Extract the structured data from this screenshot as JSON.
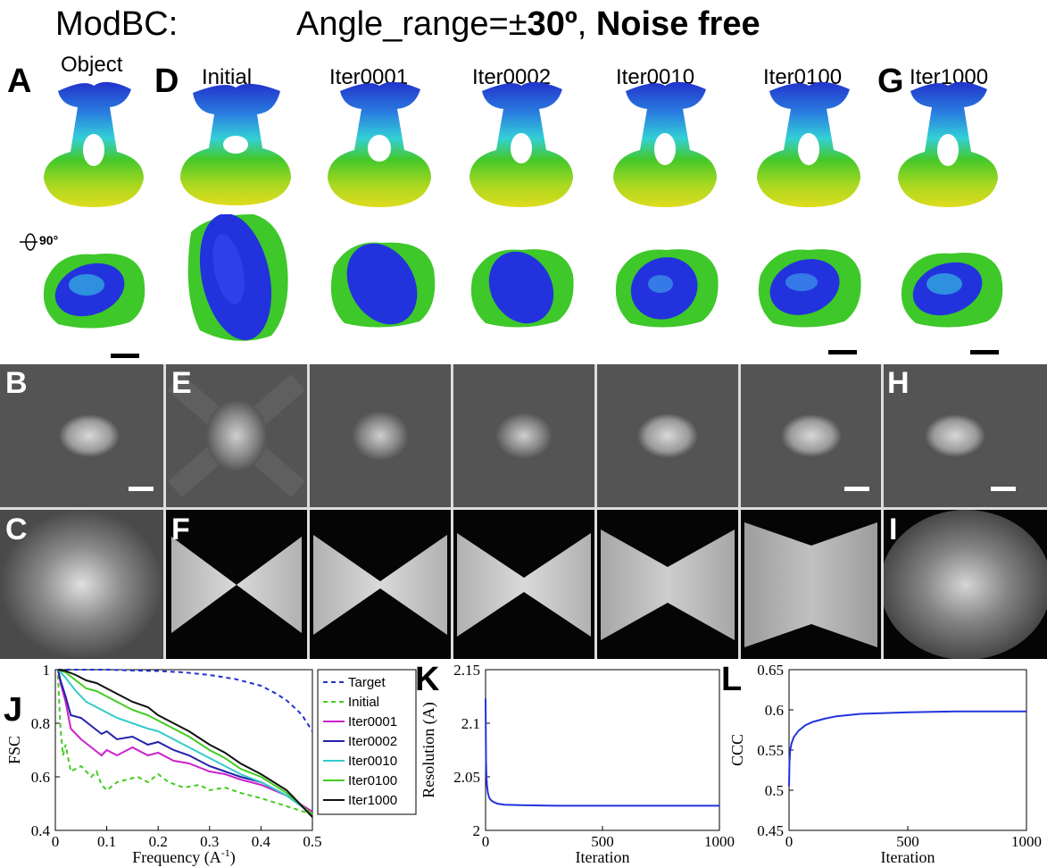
{
  "figure": {
    "title_left": "ModBC:",
    "title_right_pre": "Angle_range=±",
    "title_right_bold_value": "30º",
    "title_right_sep": ", ",
    "title_right_bold_tail": "Noise free",
    "rotation_label": "90°",
    "panel_letters": {
      "A": "A",
      "B": "B",
      "C": "C",
      "D": "D",
      "E": "E",
      "F": "F",
      "G": "G",
      "H": "H",
      "I": "I",
      "J": "J",
      "K": "K",
      "L": "L"
    },
    "columns": [
      "Object",
      "Initial",
      "Iter0001",
      "Iter0002",
      "Iter0010",
      "Iter0100",
      "Iter1000"
    ],
    "colors": {
      "blue": "#2244dd",
      "cyan": "#33cce0",
      "green": "#44cc22",
      "yellow": "#dddd22",
      "proj_bg": "#545454",
      "fft_bg": "#050505"
    }
  },
  "chart_data": [
    {
      "type": "line",
      "panel": "J",
      "xlabel": "Frequency (A",
      "xlabel_sup": "-1",
      "xlabel_end": ")",
      "ylabel": "FSC",
      "xlim": [
        0,
        0.5
      ],
      "ylim": [
        0.4,
        1
      ],
      "xticks": [
        "0",
        "0.1",
        "0.2",
        "0.3",
        "0.4",
        "0.5"
      ],
      "yticks": [
        "0.4",
        "0.6",
        "0.8",
        "1"
      ],
      "legend_position": "right",
      "series": [
        {
          "name": "Target",
          "color": "#2233cc",
          "dash": "5,4",
          "x": [
            0.005,
            0.05,
            0.1,
            0.15,
            0.2,
            0.25,
            0.3,
            0.35,
            0.4,
            0.43,
            0.45,
            0.47,
            0.48,
            0.49,
            0.5
          ],
          "y": [
            1,
            1,
            1,
            0.997,
            0.995,
            0.99,
            0.98,
            0.965,
            0.94,
            0.91,
            0.885,
            0.85,
            0.83,
            0.8,
            0.77
          ]
        },
        {
          "name": "Initial",
          "color": "#44cc22",
          "dash": "5,4",
          "x": [
            0.005,
            0.01,
            0.015,
            0.02,
            0.03,
            0.05,
            0.07,
            0.08,
            0.09,
            0.1,
            0.12,
            0.14,
            0.16,
            0.18,
            0.2,
            0.22,
            0.25,
            0.28,
            0.3,
            0.33,
            0.36,
            0.4,
            0.45,
            0.5
          ],
          "y": [
            0.98,
            0.78,
            0.68,
            0.72,
            0.62,
            0.64,
            0.6,
            0.62,
            0.57,
            0.55,
            0.58,
            0.59,
            0.6,
            0.58,
            0.61,
            0.58,
            0.56,
            0.57,
            0.55,
            0.56,
            0.54,
            0.52,
            0.49,
            0.46
          ]
        },
        {
          "name": "Iter0001",
          "color": "#cc22cc",
          "dash": "",
          "x": [
            0.005,
            0.01,
            0.02,
            0.03,
            0.05,
            0.07,
            0.09,
            0.1,
            0.12,
            0.15,
            0.18,
            0.2,
            0.23,
            0.26,
            0.3,
            0.33,
            0.36,
            0.4,
            0.45,
            0.5
          ],
          "y": [
            1,
            0.95,
            0.88,
            0.78,
            0.74,
            0.71,
            0.68,
            0.7,
            0.68,
            0.71,
            0.68,
            0.69,
            0.66,
            0.65,
            0.62,
            0.61,
            0.59,
            0.57,
            0.53,
            0.47
          ]
        },
        {
          "name": "Iter0002",
          "color": "#2222aa",
          "dash": "",
          "x": [
            0.005,
            0.01,
            0.02,
            0.03,
            0.05,
            0.07,
            0.09,
            0.1,
            0.12,
            0.15,
            0.18,
            0.2,
            0.23,
            0.26,
            0.3,
            0.33,
            0.36,
            0.4,
            0.45,
            0.5
          ],
          "y": [
            1,
            0.96,
            0.9,
            0.83,
            0.82,
            0.79,
            0.76,
            0.77,
            0.74,
            0.75,
            0.72,
            0.73,
            0.7,
            0.68,
            0.64,
            0.62,
            0.6,
            0.58,
            0.53,
            0.46
          ]
        },
        {
          "name": "Iter0010",
          "color": "#33cccc",
          "dash": "",
          "x": [
            0.005,
            0.02,
            0.04,
            0.06,
            0.08,
            0.1,
            0.12,
            0.15,
            0.18,
            0.2,
            0.23,
            0.26,
            0.3,
            0.33,
            0.36,
            0.4,
            0.45,
            0.5
          ],
          "y": [
            1,
            0.97,
            0.92,
            0.88,
            0.86,
            0.84,
            0.82,
            0.8,
            0.78,
            0.77,
            0.74,
            0.71,
            0.67,
            0.64,
            0.61,
            0.58,
            0.53,
            0.46
          ]
        },
        {
          "name": "Iter0100",
          "color": "#44cc22",
          "dash": "",
          "x": [
            0.005,
            0.02,
            0.04,
            0.06,
            0.08,
            0.1,
            0.12,
            0.15,
            0.18,
            0.2,
            0.23,
            0.26,
            0.3,
            0.33,
            0.36,
            0.4,
            0.45,
            0.5
          ],
          "y": [
            1,
            0.99,
            0.96,
            0.93,
            0.92,
            0.9,
            0.88,
            0.85,
            0.83,
            0.81,
            0.78,
            0.75,
            0.7,
            0.67,
            0.63,
            0.6,
            0.54,
            0.46
          ]
        },
        {
          "name": "Iter1000",
          "color": "#111111",
          "dash": "",
          "x": [
            0.005,
            0.02,
            0.04,
            0.06,
            0.08,
            0.1,
            0.12,
            0.15,
            0.18,
            0.2,
            0.23,
            0.26,
            0.3,
            0.33,
            0.36,
            0.4,
            0.45,
            0.5
          ],
          "y": [
            1,
            0.995,
            0.98,
            0.96,
            0.95,
            0.93,
            0.91,
            0.88,
            0.86,
            0.83,
            0.8,
            0.77,
            0.72,
            0.69,
            0.65,
            0.61,
            0.55,
            0.45
          ]
        }
      ]
    },
    {
      "type": "line",
      "panel": "K",
      "xlabel": "Iteration",
      "ylabel": "Resolution (A)",
      "xlim": [
        0,
        1000
      ],
      "ylim": [
        2,
        2.15
      ],
      "xticks": [
        "0",
        "500",
        "1000"
      ],
      "yticks": [
        "2",
        "2.05",
        "2.1",
        "2.15"
      ],
      "series": [
        {
          "color": "#2233dd",
          "x": [
            0,
            2,
            4,
            6,
            10,
            15,
            20,
            30,
            50,
            80,
            150,
            300,
            500,
            700,
            1000
          ],
          "y": [
            2.123,
            2.065,
            2.05,
            2.042,
            2.035,
            2.031,
            2.029,
            2.027,
            2.025,
            2.024,
            2.0235,
            2.023,
            2.023,
            2.023,
            2.023
          ]
        }
      ]
    },
    {
      "type": "line",
      "panel": "L",
      "xlabel": "Iteration",
      "ylabel": "CCC",
      "xlim": [
        0,
        1000
      ],
      "ylim": [
        0.45,
        0.65
      ],
      "xticks": [
        "0",
        "500",
        "1000"
      ],
      "yticks": [
        "0.45",
        "0.5",
        "0.55",
        "0.6",
        "0.65"
      ],
      "series": [
        {
          "color": "#2233dd",
          "x": [
            0,
            2,
            5,
            10,
            20,
            40,
            70,
            100,
            150,
            200,
            300,
            400,
            500,
            700,
            1000
          ],
          "y": [
            0.505,
            0.535,
            0.55,
            0.558,
            0.566,
            0.574,
            0.581,
            0.585,
            0.589,
            0.592,
            0.595,
            0.596,
            0.597,
            0.598,
            0.598
          ]
        }
      ]
    }
  ]
}
